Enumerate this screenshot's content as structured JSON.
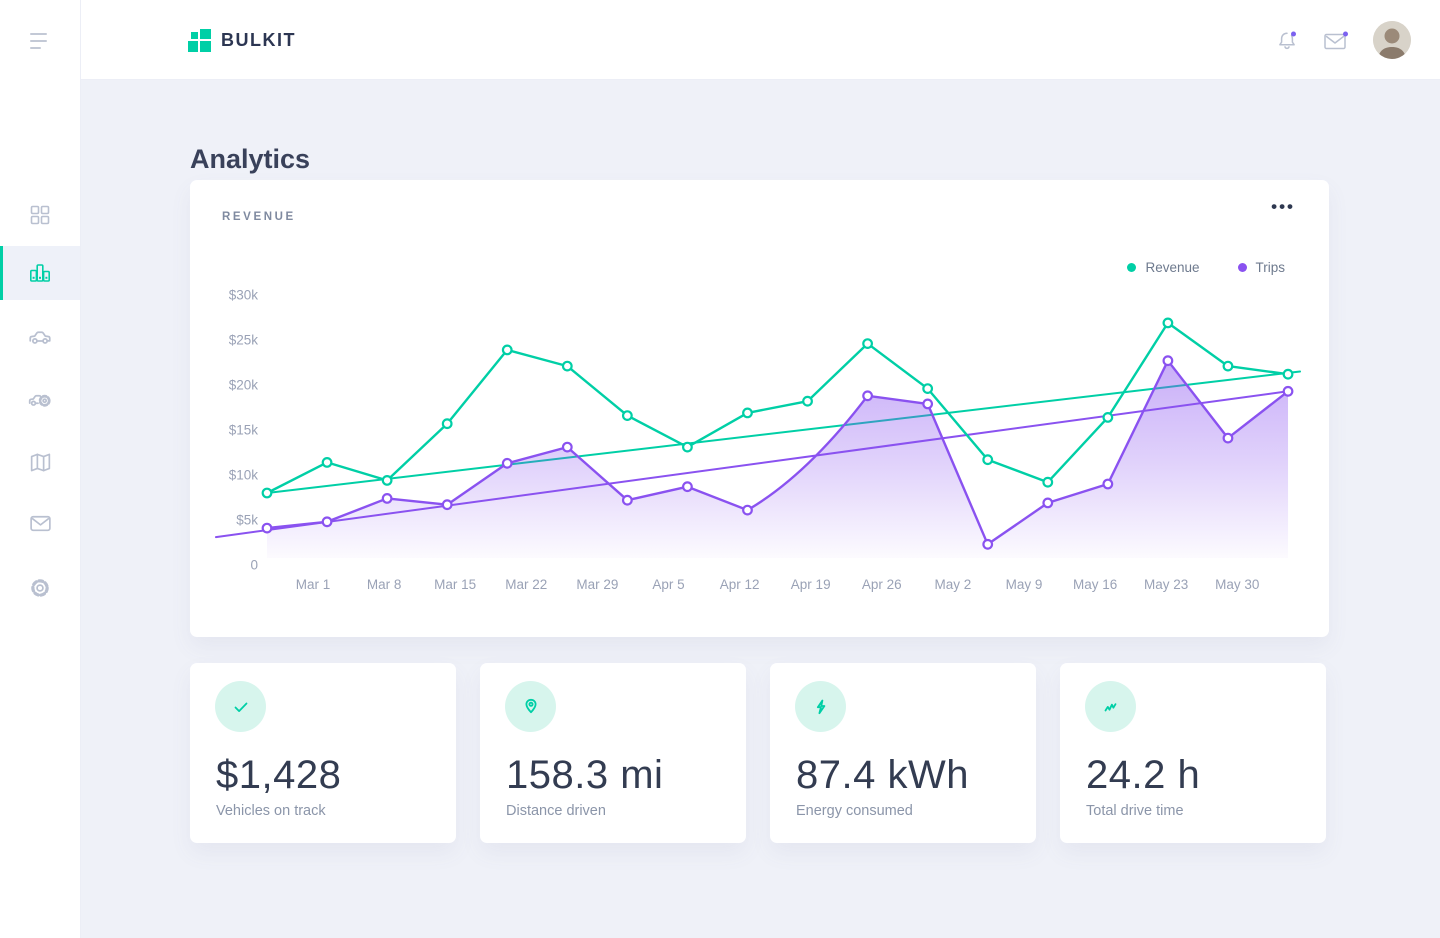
{
  "brand": {
    "name": "BULKIT"
  },
  "page": {
    "title": "Analytics"
  },
  "header": {
    "icons": [
      {
        "name": "bell-icon",
        "badge": true
      },
      {
        "name": "mail-icon",
        "badge": true
      },
      {
        "name": "avatar",
        "badge": false
      }
    ]
  },
  "sidebar": {
    "items": [
      {
        "name": "menu-toggle",
        "icon": "hamburger-icon",
        "active": false
      },
      {
        "name": "dashboard",
        "icon": "grid-icon",
        "active": false
      },
      {
        "name": "analytics",
        "icon": "bar-chart-icon",
        "active": true
      },
      {
        "name": "vehicles",
        "icon": "car-icon",
        "active": false
      },
      {
        "name": "vehicle-service",
        "icon": "car-gear-icon",
        "active": false
      },
      {
        "name": "map",
        "icon": "map-icon",
        "active": false
      },
      {
        "name": "messages",
        "icon": "mail-icon",
        "active": false
      },
      {
        "name": "settings",
        "icon": "gear-icon",
        "active": false
      }
    ]
  },
  "revenue_card": {
    "title": "REVENUE",
    "menu_label": "•••",
    "legend": [
      {
        "label": "Revenue",
        "color": "#00cfa6"
      },
      {
        "label": "Trips",
        "color": "#8a52f0"
      }
    ]
  },
  "chart_data": {
    "type": "line",
    "title": "REVENUE",
    "x_tick_labels": [
      "Mar 1",
      "Mar 8",
      "Mar 15",
      "Mar 22",
      "Mar 29",
      "Apr 5",
      "Apr 12",
      "Apr 19",
      "Apr 26",
      "May 2",
      "May 9",
      "May 16",
      "May 23",
      "May 30"
    ],
    "y_tick_labels": [
      {
        "label": "$30k",
        "value_k": 30
      },
      {
        "label": "$25k",
        "value_k": 25
      },
      {
        "label": "$20k",
        "value_k": 20
      },
      {
        "label": "$15k",
        "value_k": 15
      },
      {
        "label": "$10k",
        "value_k": 10
      },
      {
        "label": "$5k",
        "value_k": 5
      },
      {
        "label": "0",
        "value_k": 0
      }
    ],
    "ylim_k": [
      0,
      30
    ],
    "grid": false,
    "legend_position": "top-right",
    "series": [
      {
        "name": "Revenue",
        "type": "line",
        "color": "#00cfa6",
        "marker": "circle",
        "values_k": [
          8,
          11.4,
          9.4,
          15.7,
          23.9,
          22.1,
          16.6,
          13.1,
          16.9,
          18.2,
          24.6,
          19.6,
          11.7,
          9.2,
          16.4,
          26.9,
          22.1,
          21.2
        ]
      },
      {
        "name": "Trips",
        "type": "area-line",
        "color": "#8a52f0",
        "marker": "circle",
        "values_k": [
          4.1,
          4.8,
          7.4,
          6.7,
          11.3,
          13.1,
          7.2,
          8.7,
          6.1,
          null,
          18.8,
          17.9,
          2.3,
          6.9,
          9,
          22.7,
          14.1,
          19.3
        ]
      },
      {
        "name": "Revenue trend",
        "type": "trendline",
        "color": "#00cfa6",
        "points": [
          {
            "x": 0,
            "y_k": 8
          },
          {
            "x": 17.2,
            "y_k": 21.5
          }
        ]
      },
      {
        "name": "Trips trend",
        "type": "trendline",
        "color": "#8a52f0",
        "points": [
          {
            "x": -0.85,
            "y_k": 3.1
          },
          {
            "x": 17,
            "y_k": 19.3
          }
        ]
      }
    ],
    "note": "18 evenly spaced data points per series under 14 weekly x labels; Trips has no marker at slot index 9"
  },
  "stats": [
    {
      "icon": "check-icon",
      "value": "$1,428",
      "label": "Vehicles on track"
    },
    {
      "icon": "map-pin-icon",
      "value": "158.3 mi",
      "label": "Distance driven"
    },
    {
      "icon": "lightning-icon",
      "value": "87.4 kWh",
      "label": "Energy consumed"
    },
    {
      "icon": "trend-up-icon",
      "value": "24.2 h",
      "label": "Total drive time"
    }
  ],
  "colors": {
    "accent_teal": "#00cfa6",
    "accent_purple": "#8a52f0",
    "badge_purple": "#7b61f0",
    "background": "#eff1f8",
    "card": "#ffffff",
    "text_dark": "#333c51",
    "text_muted": "#8b95a9",
    "axis_text": "#9aa2b6",
    "sidebar_icon_gray": "#b9c0d0",
    "stat_icon_bg_mint": "#d7f5ed"
  }
}
